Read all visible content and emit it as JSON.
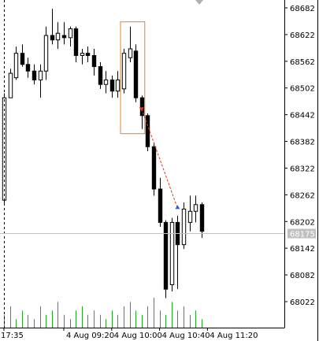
{
  "chart_data": {
    "type": "candlestick",
    "y_ticks": [
      68682,
      68622,
      68562,
      68502,
      68442,
      68382,
      68322,
      68262,
      68202,
      68142,
      68082,
      68022
    ],
    "y_tick_labels": [
      "68682",
      "68622",
      "68562",
      "68502",
      "68442",
      "68382",
      "68322",
      "68262",
      "68202",
      "68142",
      "68082",
      "68022"
    ],
    "x_tick_labels": [
      {
        "label": "17:35",
        "bar": 0
      },
      {
        "label": "4 Aug 09:20",
        "bar": 10
      },
      {
        "label": "4 Aug 10:00",
        "bar": 18
      },
      {
        "label": "4 Aug 10:40",
        "bar": 26
      },
      {
        "label": "4 Aug 11:20",
        "bar": 34
      }
    ],
    "current_price": 68175,
    "current_price_label": "68175",
    "price_line_color": "#c0c0c0",
    "candles": [
      {
        "o": 68250,
        "h": 68490,
        "l": 68240,
        "c": 68480
      },
      {
        "o": 68480,
        "h": 68545,
        "l": 68480,
        "c": 68535
      },
      {
        "o": 68525,
        "h": 68595,
        "l": 68520,
        "c": 68580
      },
      {
        "o": 68580,
        "h": 68600,
        "l": 68550,
        "c": 68555
      },
      {
        "o": 68555,
        "h": 68570,
        "l": 68525,
        "c": 68540
      },
      {
        "o": 68540,
        "h": 68555,
        "l": 68510,
        "c": 68520
      },
      {
        "o": 68520,
        "h": 68555,
        "l": 68480,
        "c": 68540
      },
      {
        "o": 68540,
        "h": 68640,
        "l": 68520,
        "c": 68620
      },
      {
        "o": 68620,
        "h": 68680,
        "l": 68600,
        "c": 68610
      },
      {
        "o": 68610,
        "h": 68650,
        "l": 68590,
        "c": 68625
      },
      {
        "o": 68620,
        "h": 68650,
        "l": 68600,
        "c": 68615
      },
      {
        "o": 68615,
        "h": 68640,
        "l": 68595,
        "c": 68635
      },
      {
        "o": 68635,
        "h": 68640,
        "l": 68560,
        "c": 68575
      },
      {
        "o": 68575,
        "h": 68590,
        "l": 68555,
        "c": 68580
      },
      {
        "o": 68580,
        "h": 68595,
        "l": 68560,
        "c": 68575
      },
      {
        "o": 68575,
        "h": 68590,
        "l": 68530,
        "c": 68550
      },
      {
        "o": 68550,
        "h": 68560,
        "l": 68500,
        "c": 68510
      },
      {
        "o": 68510,
        "h": 68540,
        "l": 68490,
        "c": 68520
      },
      {
        "o": 68520,
        "h": 68530,
        "l": 68480,
        "c": 68495
      },
      {
        "o": 68495,
        "h": 68540,
        "l": 68480,
        "c": 68520
      },
      {
        "o": 68500,
        "h": 68590,
        "l": 68490,
        "c": 68580
      },
      {
        "o": 68570,
        "h": 68640,
        "l": 68560,
        "c": 68590
      },
      {
        "o": 68585,
        "h": 68600,
        "l": 68470,
        "c": 68480
      },
      {
        "o": 68480,
        "h": 68485,
        "l": 68410,
        "c": 68440
      },
      {
        "o": 68440,
        "h": 68445,
        "l": 68360,
        "c": 68370
      },
      {
        "o": 68370,
        "h": 68380,
        "l": 68260,
        "c": 68275
      },
      {
        "o": 68275,
        "h": 68300,
        "l": 68190,
        "c": 68200
      },
      {
        "o": 68200,
        "h": 68205,
        "l": 68030,
        "c": 68050
      },
      {
        "o": 68060,
        "h": 68210,
        "l": 68045,
        "c": 68200
      },
      {
        "o": 68200,
        "h": 68215,
        "l": 68050,
        "c": 68150
      },
      {
        "o": 68150,
        "h": 68245,
        "l": 68140,
        "c": 68230
      },
      {
        "o": 68200,
        "h": 68260,
        "l": 68180,
        "c": 68225
      },
      {
        "o": 68225,
        "h": 68260,
        "l": 68200,
        "c": 68240
      },
      {
        "o": 68240,
        "h": 68245,
        "l": 68165,
        "c": 68180
      }
    ],
    "volumes": [
      3,
      5,
      2,
      4,
      3,
      2,
      5,
      3,
      4,
      6,
      3,
      2,
      4,
      5,
      3,
      4,
      3,
      2,
      4,
      3,
      5,
      6,
      4,
      3,
      5,
      7,
      4,
      3,
      6,
      4,
      5,
      3,
      4,
      2
    ],
    "volume_color": "#22aa22",
    "highlight_box": {
      "from_bar": 20,
      "to_bar": 23,
      "color": "#e08030"
    },
    "trade_arrow": {
      "from_bar": 23,
      "from_price": 68455,
      "to_bar": 29,
      "to_price": 68232,
      "line_color": "#e03a1a",
      "sell_marker_color": "#e03a1a",
      "buy_marker_color": "#2266cc"
    }
  }
}
